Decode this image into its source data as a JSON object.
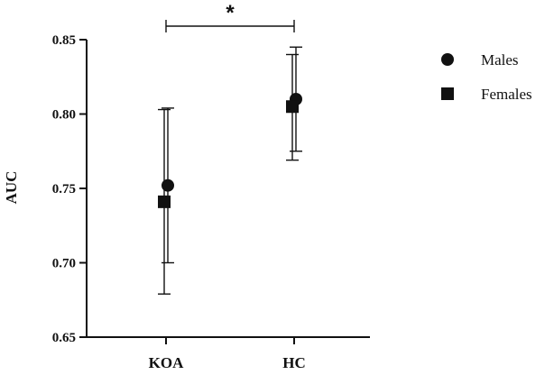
{
  "chart_data": {
    "type": "scatter",
    "title": "",
    "xlabel": "",
    "ylabel": "AUC",
    "categories": [
      "KOA",
      "HC"
    ],
    "ylim": [
      0.65,
      0.85
    ],
    "yticks": [
      "0.65",
      "0.70",
      "0.75",
      "0.80",
      "0.85"
    ],
    "grid": false,
    "legend_position": "right",
    "series": [
      {
        "name": "Males",
        "marker": "circle",
        "values": [
          0.752,
          0.81
        ],
        "error_low": [
          0.7,
          0.775
        ],
        "error_high": [
          0.804,
          0.845
        ]
      },
      {
        "name": "Females",
        "marker": "square",
        "values": [
          0.741,
          0.805
        ],
        "error_low": [
          0.679,
          0.769
        ],
        "error_high": [
          0.803,
          0.84
        ]
      }
    ],
    "annotations": [
      {
        "type": "significance-bracket",
        "between": [
          "KOA",
          "HC"
        ],
        "text": "*"
      }
    ],
    "colors": {
      "marker": "#111111",
      "axis": "#111111"
    }
  }
}
